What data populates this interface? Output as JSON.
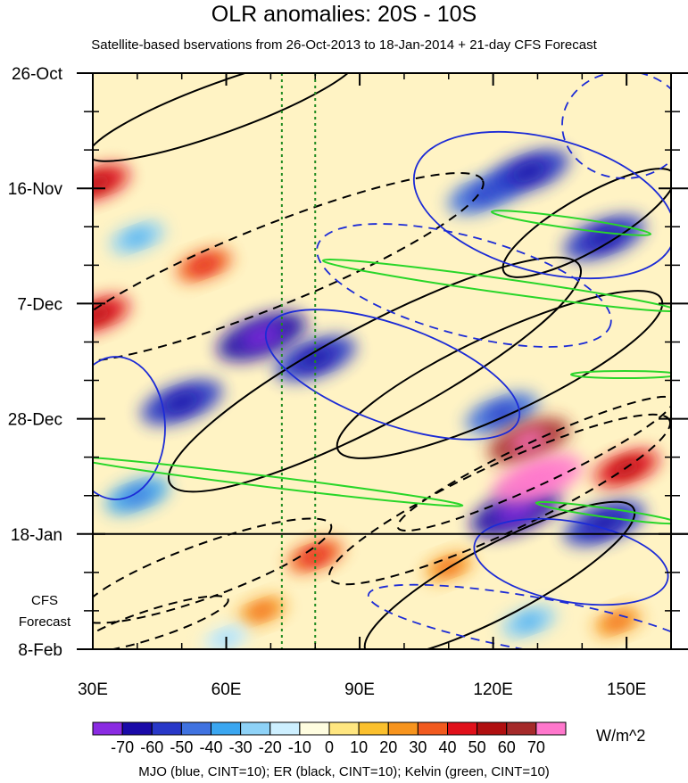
{
  "chart_data": {
    "type": "heatmap",
    "title": "OLR anomalies: 20S - 10S",
    "subtitle": "Satellite-based bservations from 26-Oct-2013 to 18-Jan-2014 + 21-day CFS Forecast",
    "x_tick_labels": [
      "30E",
      "60E",
      "90E",
      "120E",
      "150E"
    ],
    "x_tick_values": [
      30,
      60,
      90,
      120,
      150
    ],
    "xlim": [
      30,
      160
    ],
    "y_tick_labels": [
      "26-Oct",
      "16-Nov",
      "7-Dec",
      "28-Dec",
      "18-Jan",
      "8-Feb"
    ],
    "y_tick_days": [
      0,
      21,
      42,
      63,
      84,
      105
    ],
    "ylim_days": [
      0,
      105
    ],
    "observation_end_day": 84,
    "forecast_label_line1": "CFS",
    "forecast_label_line2": "Forecast",
    "reference_lines_lon": [
      72.5,
      80
    ],
    "colorbar": {
      "labels": [
        "-70",
        "-60",
        "-50",
        "-40",
        "-30",
        "-20",
        "-10",
        "0",
        "10",
        "20",
        "30",
        "40",
        "50",
        "60",
        "70"
      ],
      "colors": [
        "#8a2be2",
        "#1a0aa8",
        "#2838c8",
        "#3f72e0",
        "#3aa6f0",
        "#8ed2f7",
        "#cdefff",
        "#fffde0",
        "#ffe680",
        "#fbc02d",
        "#f7941d",
        "#f15a1f",
        "#e0101a",
        "#b00f10",
        "#a52a2a",
        "#ff77cc"
      ],
      "units": "W/m^2"
    },
    "contour_legend": "MJO (blue, CINT=10); ER (black, CINT=10); Kelvin (green, CINT=10)",
    "anomaly_blobs": [
      {
        "lon": 40,
        "day": 30,
        "value": -30
      },
      {
        "lon": 50,
        "day": 60,
        "value": -60
      },
      {
        "lon": 68,
        "day": 48,
        "value": -70
      },
      {
        "lon": 80,
        "day": 52,
        "value": -60
      },
      {
        "lon": 118,
        "day": 22,
        "value": -50
      },
      {
        "lon": 128,
        "day": 18,
        "value": -60
      },
      {
        "lon": 145,
        "day": 30,
        "value": -60
      },
      {
        "lon": 122,
        "day": 62,
        "value": -50
      },
      {
        "lon": 125,
        "day": 80,
        "value": -70
      },
      {
        "lon": 145,
        "day": 82,
        "value": -60
      },
      {
        "lon": 40,
        "day": 77,
        "value": -40
      },
      {
        "lon": 55,
        "day": 35,
        "value": 30
      },
      {
        "lon": 80,
        "day": 88,
        "value": 30
      },
      {
        "lon": 110,
        "day": 90,
        "value": 20
      },
      {
        "lon": 128,
        "day": 67,
        "value": 60
      },
      {
        "lon": 130,
        "day": 74,
        "value": 70
      },
      {
        "lon": 150,
        "day": 72,
        "value": 40
      },
      {
        "lon": 31,
        "day": 44,
        "value": 40
      },
      {
        "lon": 31,
        "day": 20,
        "value": 40
      },
      {
        "lon": 68,
        "day": 98,
        "value": 20
      },
      {
        "lon": 60,
        "day": 103,
        "value": -20
      },
      {
        "lon": 128,
        "day": 100,
        "value": -30
      },
      {
        "lon": 148,
        "day": 100,
        "value": 20
      }
    ]
  },
  "footer": "MJO (blue, CINT=10); ER (black, CINT=10); Kelvin (green, CINT=10)"
}
